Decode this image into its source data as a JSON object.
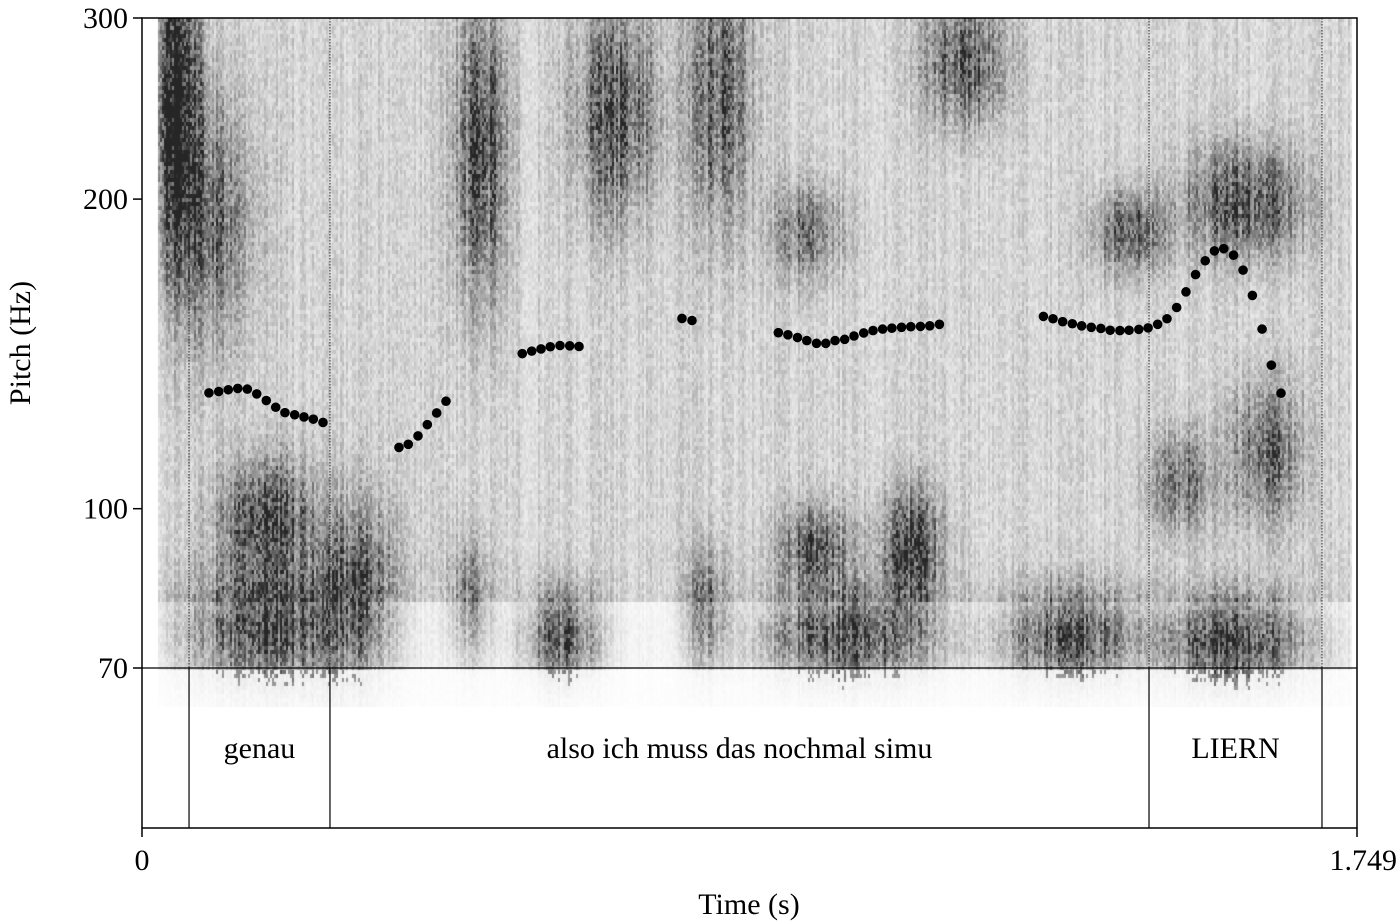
{
  "chart_data": {
    "type": "scatter",
    "title": "",
    "xlabel": "Time (s)",
    "ylabel": "Pitch (Hz)",
    "xlim": [
      0,
      1.749
    ],
    "ylim": [
      70,
      300
    ],
    "yscale": "log",
    "x_tick_labels": [
      "0",
      "1.749"
    ],
    "y_ticks": [
      70,
      100,
      200,
      300
    ],
    "y_tick_labels": [
      "70",
      "100",
      "200",
      "300"
    ],
    "background": "grayscale spectrogram",
    "grid": false,
    "point_color": "#000000",
    "series": [
      {
        "points": [
          [
            0.0964,
            129.6
          ],
          [
            0.1104,
            130.0
          ],
          [
            0.1242,
            130.5
          ],
          [
            0.1378,
            130.9
          ],
          [
            0.1516,
            130.7
          ],
          [
            0.1652,
            129.3
          ],
          [
            0.1789,
            127.4
          ],
          [
            0.1925,
            125.5
          ],
          [
            0.2058,
            124.0
          ],
          [
            0.2198,
            123.4
          ],
          [
            0.2332,
            122.8
          ],
          [
            0.2466,
            122.2
          ],
          [
            0.2605,
            121.3
          ],
          [
            0.3699,
            114.7
          ],
          [
            0.3833,
            115.5
          ],
          [
            0.3973,
            117.7
          ],
          [
            0.4107,
            120.7
          ],
          [
            0.4242,
            123.9
          ],
          [
            0.4376,
            127.2
          ],
          [
            0.5474,
            141.5
          ],
          [
            0.561,
            142.3
          ],
          [
            0.5744,
            143.0
          ],
          [
            0.5877,
            143.7
          ],
          [
            0.6017,
            144.1
          ],
          [
            0.6157,
            144.0
          ],
          [
            0.6291,
            143.8
          ],
          [
            0.7773,
            153.1
          ],
          [
            0.7917,
            152.4
          ],
          [
            0.916,
            148.3
          ],
          [
            0.9298,
            147.6
          ],
          [
            0.9436,
            146.7
          ],
          [
            0.957,
            145.7
          ],
          [
            0.971,
            144.8
          ],
          [
            0.9843,
            144.8
          ],
          [
            0.9977,
            145.7
          ],
          [
            1.0115,
            146.1
          ],
          [
            1.0249,
            147.2
          ],
          [
            1.0389,
            148.2
          ],
          [
            1.0523,
            149.0
          ],
          [
            1.0661,
            149.5
          ],
          [
            1.0795,
            149.8
          ],
          [
            1.0933,
            150.1
          ],
          [
            1.1067,
            150.3
          ],
          [
            1.1206,
            150.4
          ],
          [
            1.134,
            150.6
          ],
          [
            1.1479,
            151.1
          ],
          [
            1.2976,
            153.8
          ],
          [
            1.3114,
            153.0
          ],
          [
            1.3253,
            152.0
          ],
          [
            1.3392,
            151.3
          ],
          [
            1.3526,
            150.6
          ],
          [
            1.3665,
            150.1
          ],
          [
            1.3803,
            149.7
          ],
          [
            1.3937,
            149.1
          ],
          [
            1.4077,
            149.0
          ],
          [
            1.4209,
            149.1
          ],
          [
            1.4349,
            149.4
          ],
          [
            1.4483,
            149.9
          ],
          [
            1.4621,
            151.1
          ],
          [
            1.4755,
            153.0
          ],
          [
            1.4894,
            156.9
          ],
          [
            1.5028,
            162.5
          ],
          [
            1.5166,
            168.9
          ],
          [
            1.5305,
            174.2
          ],
          [
            1.5438,
            178.1
          ],
          [
            1.5572,
            179.0
          ],
          [
            1.5712,
            176.4
          ],
          [
            1.585,
            170.6
          ],
          [
            1.5984,
            161.2
          ],
          [
            1.6124,
            149.5
          ],
          [
            1.6257,
            137.9
          ],
          [
            1.6396,
            129.5
          ]
        ]
      }
    ],
    "textgrid": {
      "intervals": [
        {
          "start": 0,
          "end": 0.0677,
          "label": ""
        },
        {
          "start": 0.0677,
          "end": 0.2706,
          "label": "genau"
        },
        {
          "start": 0.2706,
          "end": 1.4496,
          "label": "also ich muss das nochmal simu"
        },
        {
          "start": 1.4496,
          "end": 1.6986,
          "label": "LIERN"
        },
        {
          "start": 1.6986,
          "end": 1.749,
          "label": ""
        }
      ]
    }
  }
}
